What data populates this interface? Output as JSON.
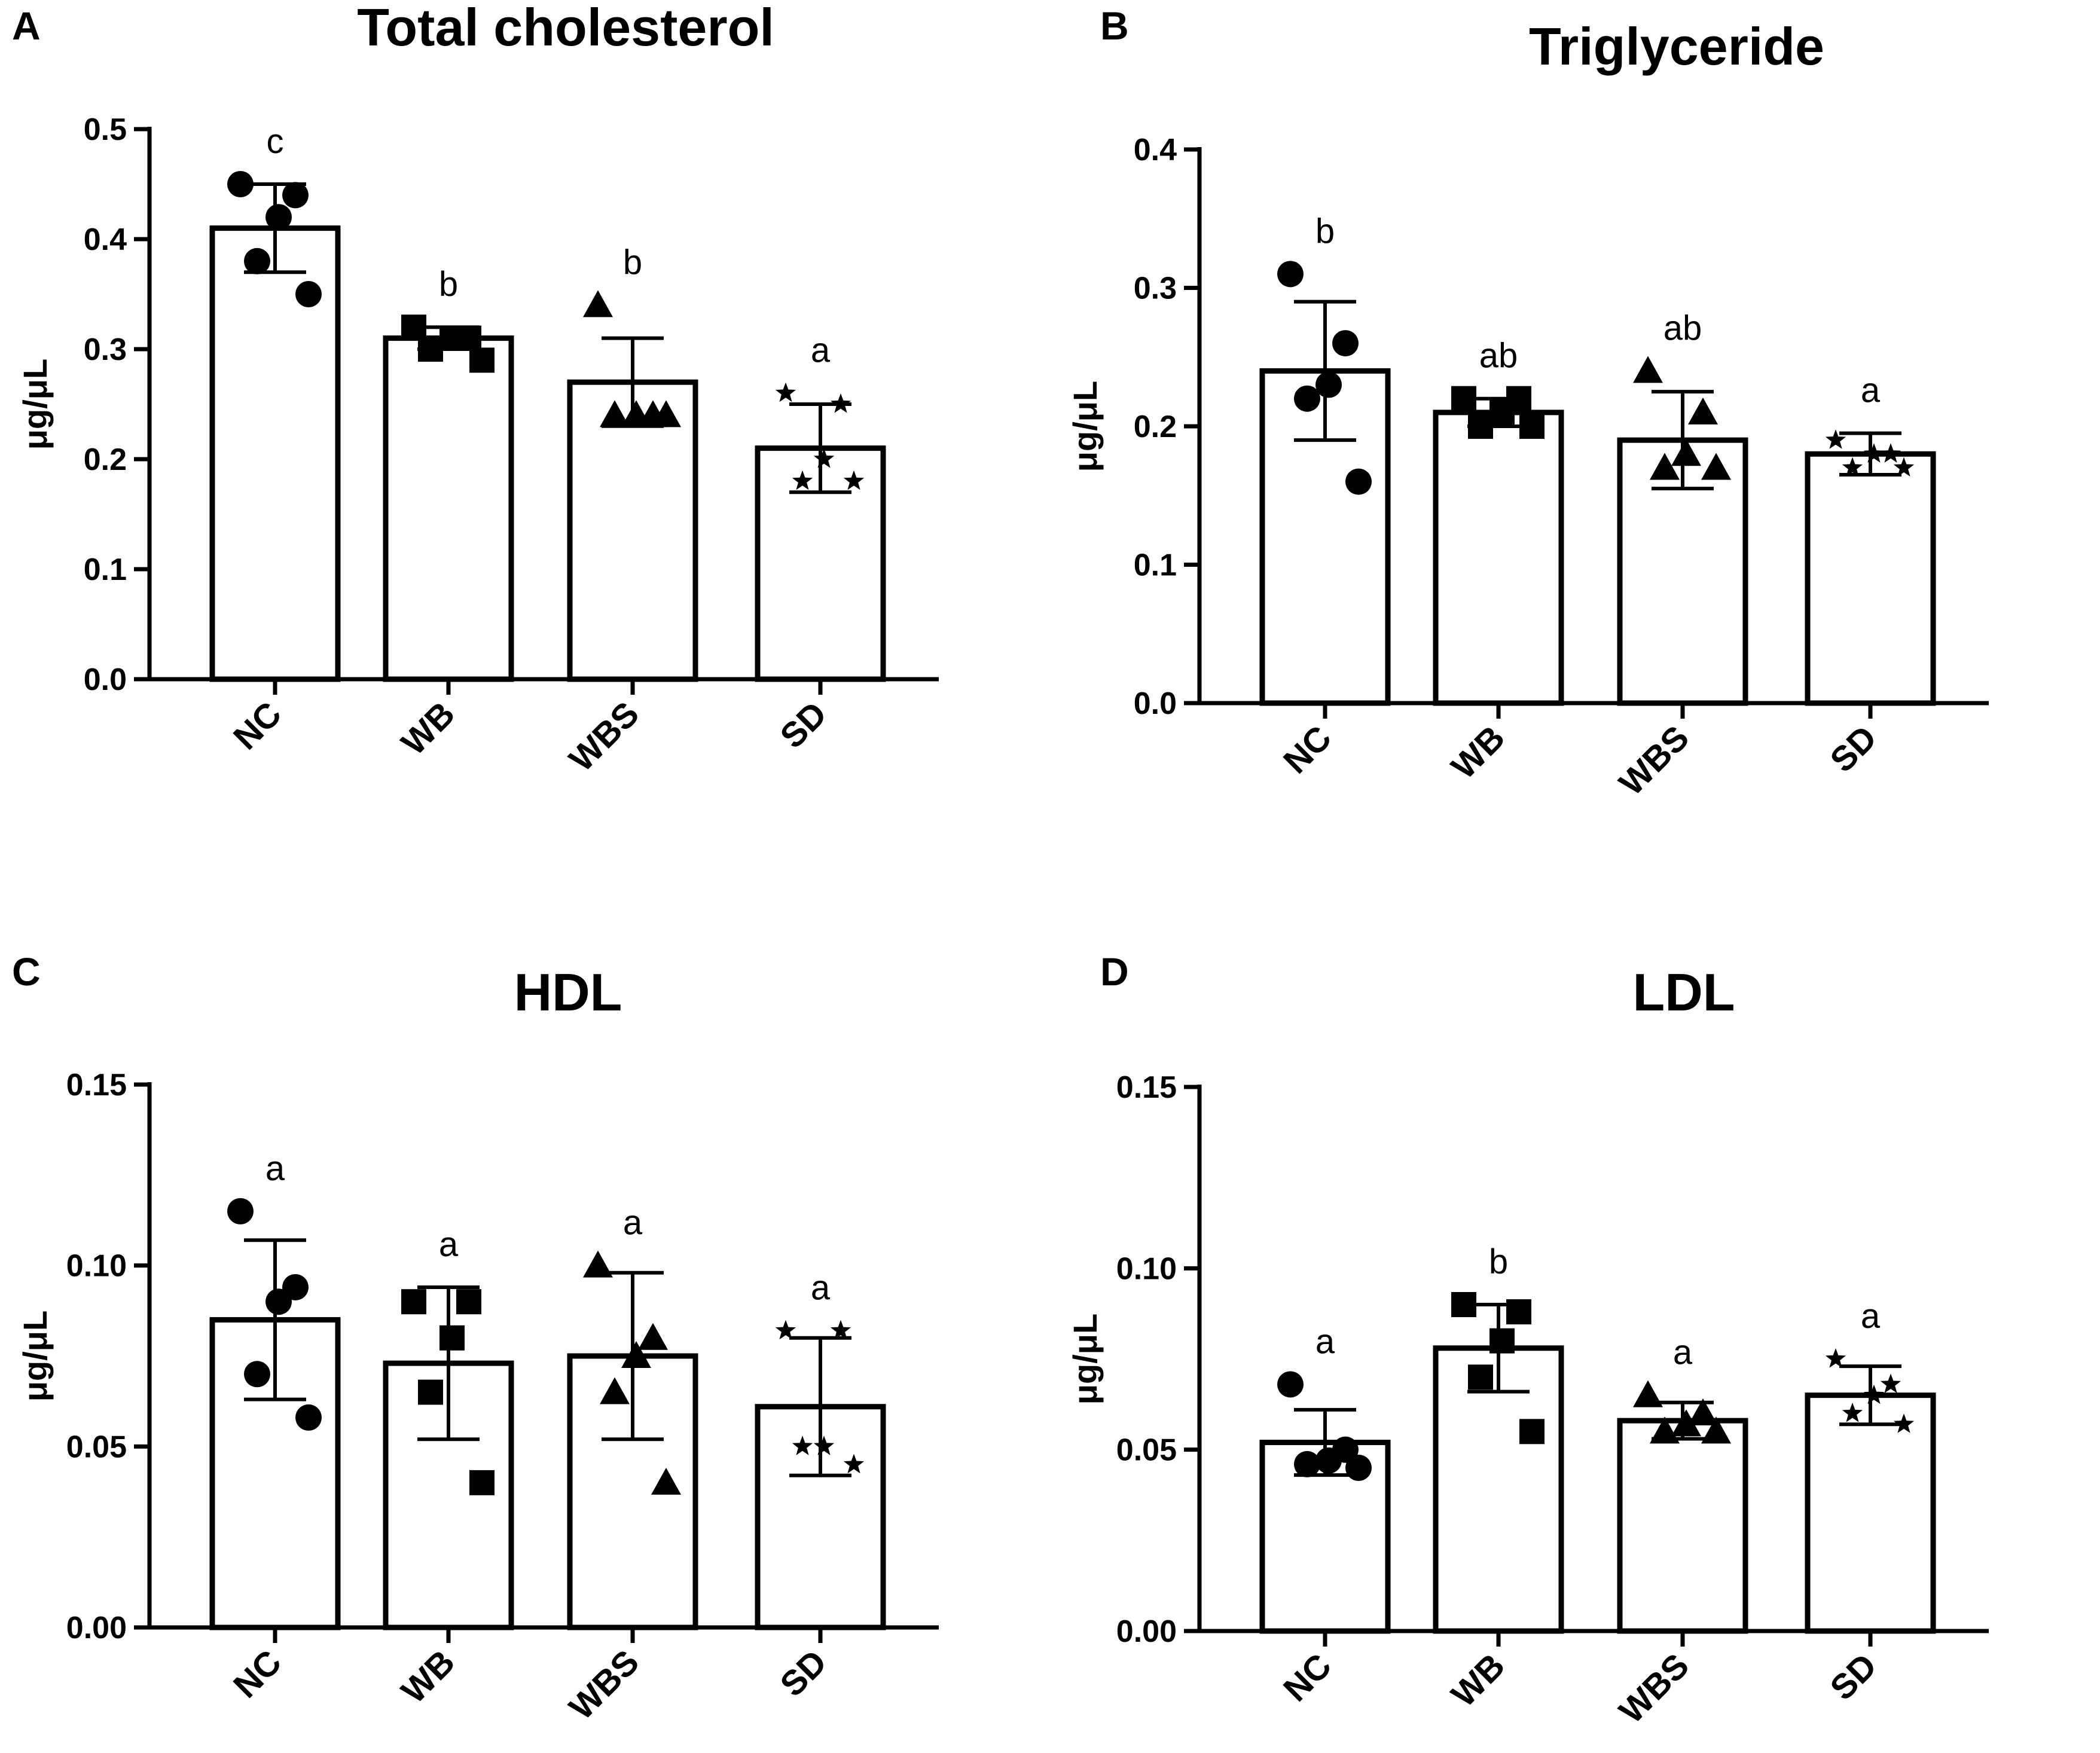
{
  "figure": {
    "chart_data": [
      {
        "panel": "A",
        "type": "bar",
        "title": "Total cholesterol",
        "xlabel": "",
        "ylabel": "μg/μL",
        "ylim": [
          0,
          0.5
        ],
        "yticks": [
          0.0,
          0.1,
          0.2,
          0.3,
          0.4,
          0.5
        ],
        "ytick_labels": [
          "0.0",
          "0.1",
          "0.2",
          "0.3",
          "0.4",
          "0.5"
        ],
        "categories": [
          "NC",
          "WB",
          "WBS",
          "SD"
        ],
        "values": [
          0.41,
          0.31,
          0.27,
          0.21
        ],
        "error": [
          0.04,
          0.01,
          0.04,
          0.04
        ],
        "significance": [
          "c",
          "b",
          "b",
          "a"
        ],
        "markers": [
          "circle",
          "square",
          "triangle",
          "star"
        ],
        "points": [
          [
            0.45,
            0.44,
            0.42,
            0.38,
            0.35
          ],
          [
            0.32,
            0.31,
            0.31,
            0.3,
            0.29
          ],
          [
            0.34,
            0.24,
            0.24,
            0.24,
            0.24
          ],
          [
            0.26,
            0.25,
            0.2,
            0.18,
            0.18
          ]
        ]
      },
      {
        "panel": "B",
        "type": "bar",
        "title": "Triglyceride",
        "xlabel": "",
        "ylabel": "μg/μL",
        "ylim": [
          0,
          0.4
        ],
        "yticks": [
          0.0,
          0.1,
          0.2,
          0.3,
          0.4
        ],
        "ytick_labels": [
          "0.0",
          "0.1",
          "0.2",
          "0.3",
          "0.4"
        ],
        "categories": [
          "NC",
          "WB",
          "WBS",
          "SD"
        ],
        "values": [
          0.24,
          0.21,
          0.19,
          0.18
        ],
        "error": [
          0.05,
          0.01,
          0.035,
          0.015
        ],
        "significance": [
          "b",
          "ab",
          "ab",
          "a"
        ],
        "markers": [
          "circle",
          "square",
          "triangle",
          "star"
        ],
        "points": [
          [
            0.31,
            0.26,
            0.23,
            0.22,
            0.16
          ],
          [
            0.22,
            0.22,
            0.21,
            0.2,
            0.2
          ],
          [
            0.24,
            0.21,
            0.18,
            0.17,
            0.17
          ],
          [
            0.19,
            0.18,
            0.18,
            0.17,
            0.17
          ]
        ]
      },
      {
        "panel": "C",
        "type": "bar",
        "title": "HDL",
        "xlabel": "",
        "ylabel": "μg/μL",
        "ylim": [
          0,
          0.15
        ],
        "yticks": [
          0.0,
          0.05,
          0.1,
          0.15
        ],
        "ytick_labels": [
          "0.00",
          "0.05",
          "0.10",
          "0.15"
        ],
        "categories": [
          "NC",
          "WB",
          "WBS",
          "SD"
        ],
        "values": [
          0.085,
          0.073,
          0.075,
          0.061
        ],
        "error": [
          0.022,
          0.021,
          0.023,
          0.019
        ],
        "significance": [
          "a",
          "a",
          "a",
          "a"
        ],
        "markers": [
          "circle",
          "square",
          "triangle",
          "star"
        ],
        "points": [
          [
            0.115,
            0.094,
            0.09,
            0.07,
            0.058
          ],
          [
            0.09,
            0.09,
            0.08,
            0.065,
            0.04
          ],
          [
            0.1,
            0.08,
            0.075,
            0.065,
            0.04
          ],
          [
            0.082,
            0.082,
            0.05,
            0.05,
            0.045
          ]
        ]
      },
      {
        "panel": "D",
        "type": "bar",
        "title": "LDL",
        "xlabel": "",
        "ylabel": "μg/μL",
        "ylim": [
          0,
          0.15
        ],
        "yticks": [
          0.0,
          0.05,
          0.1,
          0.15
        ],
        "ytick_labels": [
          "0.00",
          "0.05",
          "0.10",
          "0.15"
        ],
        "categories": [
          "NC",
          "WB",
          "WBS",
          "SD"
        ],
        "values": [
          0.052,
          0.078,
          0.058,
          0.065
        ],
        "error": [
          0.009,
          0.012,
          0.005,
          0.008
        ],
        "significance": [
          "a",
          "b",
          "a",
          "a"
        ],
        "markers": [
          "circle",
          "square",
          "triangle",
          "star"
        ],
        "points": [
          [
            0.068,
            0.05,
            0.047,
            0.046,
            0.045
          ],
          [
            0.09,
            0.088,
            0.08,
            0.07,
            0.055
          ],
          [
            0.065,
            0.06,
            0.057,
            0.055,
            0.055
          ],
          [
            0.075,
            0.068,
            0.065,
            0.06,
            0.057
          ]
        ]
      }
    ]
  }
}
